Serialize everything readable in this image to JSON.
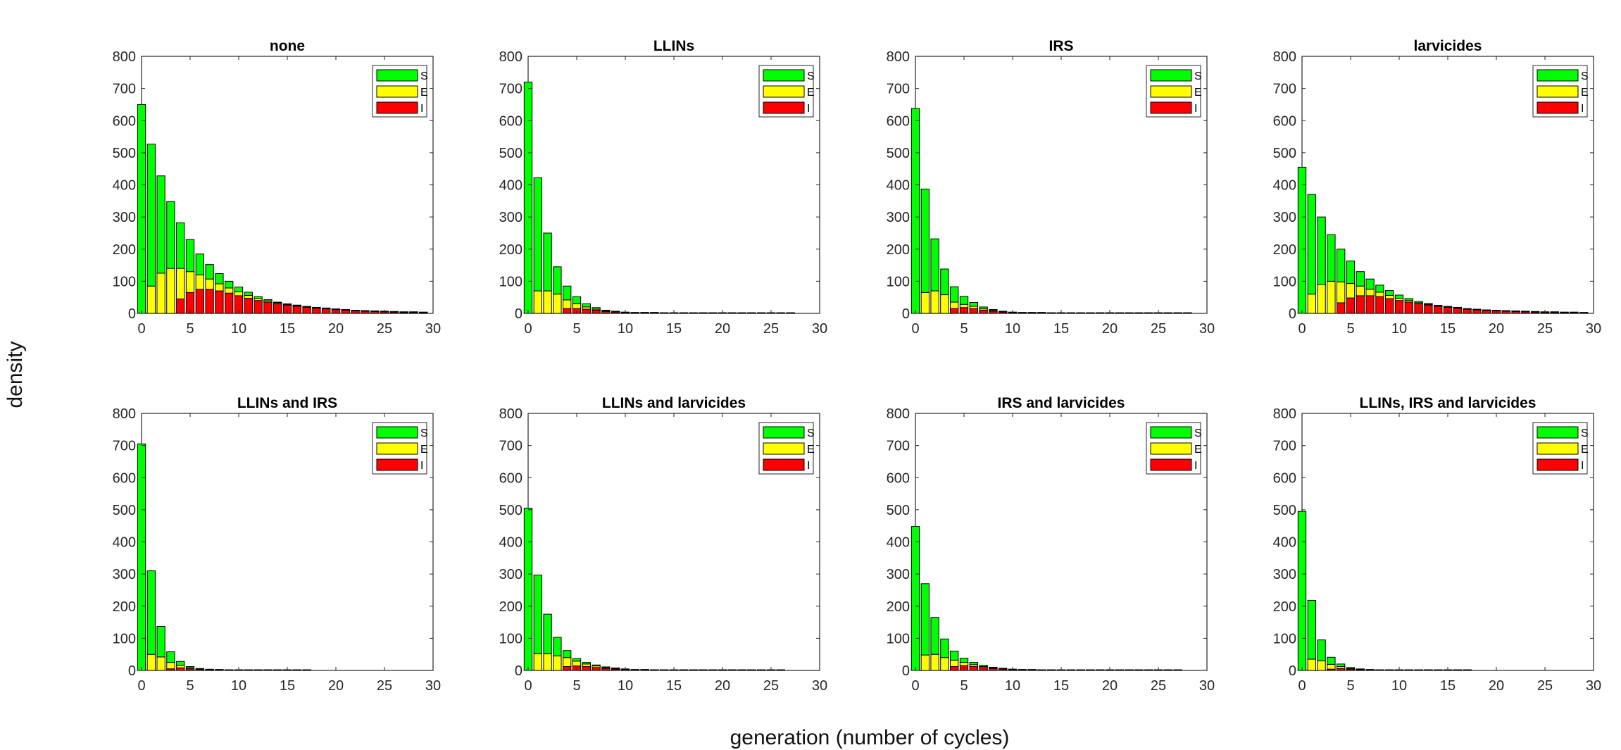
{
  "figure": {
    "ylabel": "density",
    "xlabel": "generation (number of cycles)"
  },
  "legend_labels": [
    "S",
    "E",
    "I"
  ],
  "colors": {
    "S": "#00ff00",
    "E": "#ffff00",
    "I": "#ff0000",
    "edge": "#000000"
  },
  "chart_data": [
    {
      "type": "bar",
      "stacked": true,
      "title": "none",
      "xlim": [
        0,
        30
      ],
      "ylim": [
        0,
        800
      ],
      "xticks": [
        0,
        5,
        10,
        15,
        20,
        25,
        30
      ],
      "yticks": [
        0,
        100,
        200,
        300,
        400,
        500,
        600,
        700,
        800
      ],
      "legend": "top-right",
      "grid": false,
      "x": [
        0,
        1,
        2,
        3,
        4,
        5,
        6,
        7,
        8,
        9,
        10,
        11,
        12,
        13,
        14,
        15,
        16,
        17,
        18,
        19,
        20,
        21,
        22,
        23,
        24,
        25,
        26,
        27,
        28,
        29
      ],
      "series": [
        {
          "name": "I",
          "values": [
            0,
            0,
            0,
            0,
            45,
            65,
            75,
            75,
            70,
            63,
            55,
            47,
            40,
            35,
            30,
            26,
            22,
            19,
            16,
            14,
            12,
            10,
            8,
            7,
            6,
            5,
            4,
            3,
            3,
            2
          ]
        },
        {
          "name": "E",
          "values": [
            0,
            85,
            125,
            140,
            95,
            65,
            45,
            32,
            22,
            16,
            12,
            9,
            6,
            4,
            3,
            2,
            2,
            1,
            1,
            1,
            0,
            0,
            0,
            0,
            0,
            0,
            0,
            0,
            0,
            0
          ]
        },
        {
          "name": "S",
          "values": [
            650,
            442,
            303,
            208,
            142,
            100,
            65,
            45,
            32,
            21,
            15,
            10,
            6,
            4,
            2,
            1,
            1,
            1,
            0,
            0,
            0,
            0,
            0,
            0,
            0,
            0,
            0,
            0,
            0,
            0
          ]
        }
      ]
    },
    {
      "type": "bar",
      "stacked": true,
      "title": "LLINs",
      "xlim": [
        0,
        30
      ],
      "ylim": [
        0,
        800
      ],
      "xticks": [
        0,
        5,
        10,
        15,
        20,
        25,
        30
      ],
      "yticks": [
        0,
        100,
        200,
        300,
        400,
        500,
        600,
        700,
        800
      ],
      "legend": "top-right",
      "grid": false,
      "x": [
        0,
        1,
        2,
        3,
        4,
        5,
        6,
        7,
        8,
        9,
        10,
        11,
        12,
        13,
        14,
        15,
        16,
        17,
        18,
        19,
        20,
        21,
        22,
        23,
        24,
        25,
        26,
        27
      ],
      "series": [
        {
          "name": "I",
          "values": [
            0,
            0,
            0,
            0,
            15,
            15,
            13,
            10,
            6,
            4,
            2,
            1,
            1,
            1,
            0,
            0,
            0,
            0,
            0,
            0,
            0,
            0,
            0,
            0,
            0,
            0,
            0,
            0
          ]
        },
        {
          "name": "E",
          "values": [
            0,
            70,
            70,
            60,
            27,
            15,
            7,
            3,
            2,
            1,
            0,
            0,
            0,
            0,
            0,
            0,
            0,
            0,
            0,
            0,
            0,
            0,
            0,
            0,
            0,
            0,
            0,
            0
          ]
        },
        {
          "name": "S",
          "values": [
            720,
            352,
            180,
            85,
            43,
            22,
            10,
            5,
            2,
            1,
            1,
            0,
            0,
            0,
            0,
            0,
            0,
            0,
            0,
            0,
            0,
            0,
            0,
            0,
            0,
            0,
            0,
            0
          ]
        }
      ]
    },
    {
      "type": "bar",
      "stacked": true,
      "title": "IRS",
      "xlim": [
        0,
        30
      ],
      "ylim": [
        0,
        800
      ],
      "xticks": [
        0,
        5,
        10,
        15,
        20,
        25,
        30
      ],
      "yticks": [
        0,
        100,
        200,
        300,
        400,
        500,
        600,
        700,
        800
      ],
      "legend": "top-right",
      "grid": false,
      "x": [
        0,
        1,
        2,
        3,
        4,
        5,
        6,
        7,
        8,
        9,
        10,
        11,
        12,
        13,
        14,
        15,
        16,
        17,
        18,
        19,
        20,
        21,
        22,
        23,
        24,
        25,
        26,
        27,
        28
      ],
      "series": [
        {
          "name": "I",
          "values": [
            0,
            0,
            0,
            0,
            15,
            18,
            15,
            10,
            7,
            4,
            2,
            1,
            1,
            1,
            0,
            0,
            0,
            0,
            0,
            0,
            0,
            0,
            0,
            0,
            0,
            0,
            0,
            0,
            0
          ]
        },
        {
          "name": "E",
          "values": [
            0,
            65,
            70,
            58,
            20,
            10,
            7,
            4,
            2,
            1,
            0,
            0,
            0,
            0,
            0,
            0,
            0,
            0,
            0,
            0,
            0,
            0,
            0,
            0,
            0,
            0,
            0,
            0,
            0
          ]
        },
        {
          "name": "S",
          "values": [
            638,
            322,
            162,
            80,
            48,
            25,
            12,
            6,
            3,
            1,
            1,
            0,
            0,
            0,
            0,
            0,
            0,
            0,
            0,
            0,
            0,
            0,
            0,
            0,
            0,
            0,
            0,
            0,
            0
          ]
        }
      ]
    },
    {
      "type": "bar",
      "stacked": true,
      "title": "larvicides",
      "xlim": [
        0,
        30
      ],
      "ylim": [
        0,
        800
      ],
      "xticks": [
        0,
        5,
        10,
        15,
        20,
        25,
        30
      ],
      "yticks": [
        0,
        100,
        200,
        300,
        400,
        500,
        600,
        700,
        800
      ],
      "legend": "top-right",
      "grid": false,
      "x": [
        0,
        1,
        2,
        3,
        4,
        5,
        6,
        7,
        8,
        9,
        10,
        11,
        12,
        13,
        14,
        15,
        16,
        17,
        18,
        19,
        20,
        21,
        22,
        23,
        24,
        25,
        26,
        27,
        28,
        29
      ],
      "series": [
        {
          "name": "I",
          "values": [
            0,
            0,
            0,
            0,
            33,
            48,
            55,
            55,
            52,
            46,
            40,
            35,
            30,
            26,
            22,
            19,
            16,
            13,
            11,
            9,
            8,
            7,
            6,
            5,
            4,
            3,
            3,
            2,
            2,
            1
          ]
        },
        {
          "name": "E",
          "values": [
            0,
            60,
            90,
            100,
            65,
            45,
            30,
            20,
            14,
            10,
            7,
            5,
            3,
            2,
            1,
            1,
            1,
            0,
            0,
            0,
            0,
            0,
            0,
            0,
            0,
            0,
            0,
            0,
            0,
            0
          ]
        },
        {
          "name": "S",
          "values": [
            455,
            310,
            210,
            145,
            102,
            70,
            45,
            32,
            22,
            15,
            10,
            6,
            4,
            3,
            2,
            1,
            1,
            1,
            0,
            0,
            0,
            0,
            0,
            0,
            0,
            0,
            0,
            0,
            0,
            0
          ]
        }
      ]
    },
    {
      "type": "bar",
      "stacked": true,
      "title": "LLINs and IRS",
      "xlim": [
        0,
        30
      ],
      "ylim": [
        0,
        800
      ],
      "xticks": [
        0,
        5,
        10,
        15,
        20,
        25,
        30
      ],
      "yticks": [
        0,
        100,
        200,
        300,
        400,
        500,
        600,
        700,
        800
      ],
      "legend": "top-right",
      "grid": false,
      "x": [
        0,
        1,
        2,
        3,
        4,
        5,
        6,
        7,
        8,
        9,
        10,
        11,
        12,
        13,
        14,
        15,
        16,
        17
      ],
      "series": [
        {
          "name": "I",
          "values": [
            0,
            0,
            0,
            5,
            8,
            5,
            3,
            1,
            1,
            0,
            0,
            0,
            0,
            0,
            0,
            0,
            0,
            0
          ]
        },
        {
          "name": "E",
          "values": [
            0,
            50,
            42,
            20,
            8,
            3,
            1,
            1,
            0,
            0,
            0,
            0,
            0,
            0,
            0,
            0,
            0,
            0
          ]
        },
        {
          "name": "S",
          "values": [
            705,
            260,
            95,
            33,
            12,
            4,
            2,
            1,
            0,
            0,
            0,
            0,
            0,
            0,
            0,
            0,
            0,
            0
          ]
        }
      ]
    },
    {
      "type": "bar",
      "stacked": true,
      "title": "LLINs and larvicides",
      "xlim": [
        0,
        30
      ],
      "ylim": [
        0,
        800
      ],
      "xticks": [
        0,
        5,
        10,
        15,
        20,
        25,
        30
      ],
      "yticks": [
        0,
        100,
        200,
        300,
        400,
        500,
        600,
        700,
        800
      ],
      "legend": "top-right",
      "grid": false,
      "x": [
        0,
        1,
        2,
        3,
        4,
        5,
        6,
        7,
        8,
        9,
        10,
        11,
        12,
        13,
        14,
        15,
        16,
        17,
        18,
        19,
        20,
        21,
        22,
        23,
        24,
        25,
        26
      ],
      "series": [
        {
          "name": "I",
          "values": [
            0,
            0,
            0,
            0,
            12,
            14,
            12,
            9,
            6,
            4,
            2,
            1,
            1,
            0,
            0,
            0,
            0,
            0,
            0,
            0,
            0,
            0,
            0,
            0,
            0,
            0,
            0
          ]
        },
        {
          "name": "E",
          "values": [
            0,
            52,
            52,
            45,
            28,
            15,
            8,
            5,
            3,
            2,
            1,
            0,
            0,
            0,
            0,
            0,
            0,
            0,
            0,
            0,
            0,
            0,
            0,
            0,
            0,
            0,
            0
          ]
        },
        {
          "name": "S",
          "values": [
            505,
            245,
            123,
            58,
            22,
            8,
            5,
            3,
            2,
            1,
            0,
            0,
            0,
            0,
            0,
            0,
            0,
            0,
            0,
            0,
            0,
            0,
            0,
            0,
            0,
            0,
            0
          ]
        }
      ]
    },
    {
      "type": "bar",
      "stacked": true,
      "title": "IRS and larvicides",
      "xlim": [
        0,
        30
      ],
      "ylim": [
        0,
        800
      ],
      "xticks": [
        0,
        5,
        10,
        15,
        20,
        25,
        30
      ],
      "yticks": [
        0,
        100,
        200,
        300,
        400,
        500,
        600,
        700,
        800
      ],
      "legend": "top-right",
      "grid": false,
      "x": [
        0,
        1,
        2,
        3,
        4,
        5,
        6,
        7,
        8,
        9,
        10,
        11,
        12,
        13,
        14,
        15,
        16,
        17,
        18,
        19,
        20,
        21,
        22,
        23,
        24,
        25,
        26,
        27
      ],
      "series": [
        {
          "name": "I",
          "values": [
            0,
            0,
            0,
            0,
            12,
            15,
            12,
            9,
            6,
            4,
            2,
            1,
            1,
            0,
            0,
            0,
            0,
            0,
            0,
            0,
            0,
            0,
            0,
            0,
            0,
            0,
            0,
            0
          ]
        },
        {
          "name": "E",
          "values": [
            0,
            48,
            50,
            40,
            20,
            10,
            6,
            3,
            2,
            1,
            0,
            0,
            0,
            0,
            0,
            0,
            0,
            0,
            0,
            0,
            0,
            0,
            0,
            0,
            0,
            0,
            0,
            0
          ]
        },
        {
          "name": "S",
          "values": [
            448,
            222,
            115,
            58,
            28,
            13,
            7,
            4,
            2,
            1,
            1,
            0,
            0,
            0,
            0,
            0,
            0,
            0,
            0,
            0,
            0,
            0,
            0,
            0,
            0,
            0,
            0,
            0
          ]
        }
      ]
    },
    {
      "type": "bar",
      "stacked": true,
      "title": "LLINs, IRS and larvicides",
      "xlim": [
        0,
        30
      ],
      "ylim": [
        0,
        800
      ],
      "xticks": [
        0,
        5,
        10,
        15,
        20,
        25,
        30
      ],
      "yticks": [
        0,
        100,
        200,
        300,
        400,
        500,
        600,
        700,
        800
      ],
      "legend": "top-right",
      "grid": false,
      "x": [
        0,
        1,
        2,
        3,
        4,
        5,
        6,
        7,
        8,
        9,
        10,
        11,
        12,
        13,
        14,
        15,
        16,
        17
      ],
      "series": [
        {
          "name": "I",
          "values": [
            0,
            0,
            0,
            4,
            6,
            4,
            2,
            1,
            0,
            0,
            0,
            0,
            0,
            0,
            0,
            0,
            0,
            0
          ]
        },
        {
          "name": "E",
          "values": [
            0,
            35,
            30,
            15,
            6,
            2,
            1,
            0,
            0,
            0,
            0,
            0,
            0,
            0,
            0,
            0,
            0,
            0
          ]
        },
        {
          "name": "S",
          "values": [
            495,
            183,
            65,
            22,
            8,
            3,
            1,
            1,
            0,
            0,
            0,
            0,
            0,
            0,
            0,
            0,
            0,
            0
          ]
        }
      ]
    }
  ]
}
